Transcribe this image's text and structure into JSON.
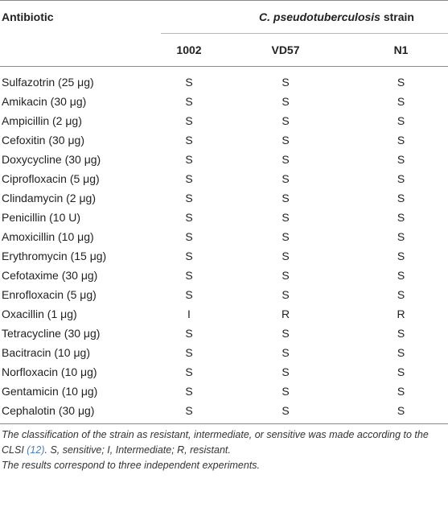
{
  "table": {
    "header_antibiotic": "Antibiotic",
    "header_strain_species": "C. pseudotuberculosis",
    "header_strain_word": " strain",
    "strains": [
      "1002",
      "VD57",
      "N1"
    ],
    "rows": [
      {
        "name": "Sulfazotrin (25 μg)",
        "values": [
          "S",
          "S",
          "S"
        ]
      },
      {
        "name": "Amikacin (30 μg)",
        "values": [
          "S",
          "S",
          "S"
        ]
      },
      {
        "name": "Ampicillin (2 μg)",
        "values": [
          "S",
          "S",
          "S"
        ]
      },
      {
        "name": "Cefoxitin (30 μg)",
        "values": [
          "S",
          "S",
          "S"
        ]
      },
      {
        "name": "Doxycycline (30 μg)",
        "values": [
          "S",
          "S",
          "S"
        ]
      },
      {
        "name": "Ciprofloxacin (5 μg)",
        "values": [
          "S",
          "S",
          "S"
        ]
      },
      {
        "name": "Clindamycin (2 μg)",
        "values": [
          "S",
          "S",
          "S"
        ]
      },
      {
        "name": "Penicillin (10 U)",
        "values": [
          "S",
          "S",
          "S"
        ]
      },
      {
        "name": "Amoxicillin (10 μg)",
        "values": [
          "S",
          "S",
          "S"
        ]
      },
      {
        "name": "Erythromycin (15 μg)",
        "values": [
          "S",
          "S",
          "S"
        ]
      },
      {
        "name": "Cefotaxime (30 μg)",
        "values": [
          "S",
          "S",
          "S"
        ]
      },
      {
        "name": "Enrofloxacin (5 μg)",
        "values": [
          "S",
          "S",
          "S"
        ]
      },
      {
        "name": "Oxacillin (1 μg)",
        "values": [
          "I",
          "R",
          "R"
        ]
      },
      {
        "name": "Tetracycline (30 μg)",
        "values": [
          "S",
          "S",
          "S"
        ]
      },
      {
        "name": "Bacitracin (10 μg)",
        "values": [
          "S",
          "S",
          "S"
        ]
      },
      {
        "name": "Norfloxacin (10 μg)",
        "values": [
          "S",
          "S",
          "S"
        ]
      },
      {
        "name": "Gentamicin (10 μg)",
        "values": [
          "S",
          "S",
          "S"
        ]
      },
      {
        "name": "Cephalotin (30 μg)",
        "values": [
          "S",
          "S",
          "S"
        ]
      }
    ]
  },
  "footnote": {
    "line1_before": "The classification of the strain as resistant, intermediate, or sensitive was made according to the CLSI ",
    "citation": "(12)",
    "line1_after": ". S, sensitive; I, Intermediate; R, resistant.",
    "line2": "The results correspond to three independent experiments."
  }
}
